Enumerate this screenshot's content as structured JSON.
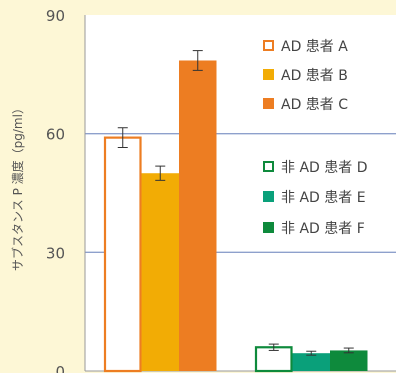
{
  "chart_data": {
    "type": "bar",
    "ylabel": "サブスタンス P 濃度（pg/ml）",
    "ylim": [
      0,
      90
    ],
    "yticks": [
      "0",
      "30",
      "60",
      "90"
    ],
    "grid": true,
    "legend_position": "right",
    "groups": [
      {
        "series": [
          {
            "name": "AD 患者 A",
            "value": 59,
            "error": 2.5,
            "color": "#ed7d22",
            "style": "outline"
          },
          {
            "name": "AD 患者 B",
            "value": 50,
            "error": 1.8,
            "color": "#f2ac05",
            "style": "fill"
          },
          {
            "name": "AD 患者 C",
            "value": 78.5,
            "error": 2.5,
            "color": "#ed7d22",
            "style": "fill"
          }
        ]
      },
      {
        "series": [
          {
            "name": "非 AD 患者 D",
            "value": 6,
            "error": 0.8,
            "color": "#0e8a3c",
            "style": "outline"
          },
          {
            "name": "非 AD 患者 E",
            "value": 4.5,
            "error": 0.5,
            "color": "#0aa07a",
            "style": "fill"
          },
          {
            "name": "非 AD 患者 F",
            "value": 5.2,
            "error": 0.6,
            "color": "#0e8a3c",
            "style": "fill"
          }
        ]
      }
    ]
  }
}
